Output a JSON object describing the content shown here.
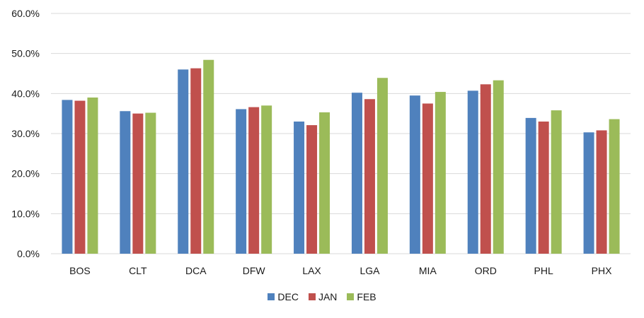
{
  "chart_data": {
    "type": "bar",
    "title": "",
    "xlabel": "",
    "ylabel": "",
    "categories": [
      "BOS",
      "CLT",
      "DCA",
      "DFW",
      "LAX",
      "LGA",
      "MIA",
      "ORD",
      "PHL",
      "PHX"
    ],
    "series": [
      {
        "name": "DEC",
        "color": "#4F81BD",
        "values": [
          38.4,
          35.6,
          46.0,
          36.1,
          33.0,
          40.2,
          39.5,
          40.7,
          33.9,
          30.3
        ]
      },
      {
        "name": "JAN",
        "color": "#C0504D",
        "values": [
          38.2,
          35.0,
          46.3,
          36.6,
          32.1,
          38.6,
          37.5,
          42.3,
          33.0,
          30.8
        ]
      },
      {
        "name": "FEB",
        "color": "#9BBB59",
        "values": [
          39.0,
          35.2,
          48.4,
          37.0,
          35.3,
          43.9,
          40.4,
          43.3,
          35.8,
          33.6
        ]
      }
    ],
    "ylim": [
      0,
      60
    ],
    "yticks": [
      "0.0%",
      "10.0%",
      "20.0%",
      "30.0%",
      "40.0%",
      "50.0%",
      "60.0%"
    ],
    "ytick_values": [
      0,
      10,
      20,
      30,
      40,
      50,
      60
    ],
    "grid": true,
    "legend_position": "bottom"
  }
}
